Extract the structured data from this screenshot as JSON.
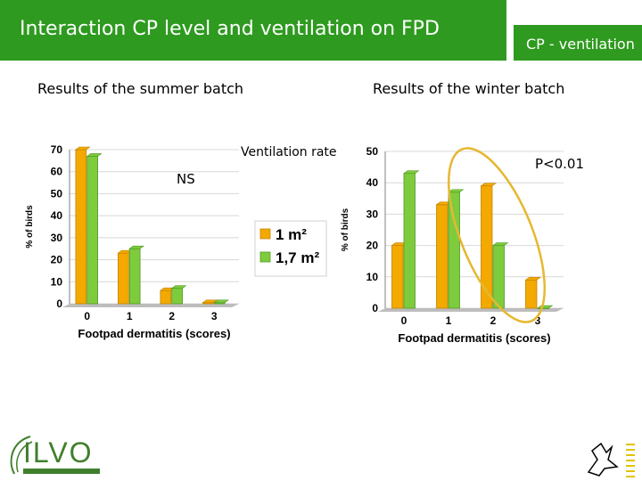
{
  "header": {
    "title": "Interaction CP level and ventilation on FPD",
    "tag": "CP - ventilation"
  },
  "sections": {
    "summer": "Results of the summer batch",
    "winter": "Results of the winter batch"
  },
  "annotations": {
    "ns": "NS",
    "ventilation_rate": "Ventilation rate",
    "p_value": "P<0.01"
  },
  "logo": {
    "text": "ILVO"
  },
  "colors": {
    "title_bg": "#2e9a1f",
    "series_1": "#f4a900",
    "series_2": "#7ecb3e",
    "ellipse": "#e6b830"
  },
  "chart_data": [
    {
      "type": "bar",
      "title": "",
      "xlabel": "Footpad dermatitis (scores)",
      "ylabel": "% of birds",
      "categories": [
        "0",
        "1",
        "2",
        "3"
      ],
      "ylim": [
        0,
        70
      ],
      "yticks": [
        0,
        10,
        20,
        30,
        40,
        50,
        60,
        70
      ],
      "grid": true,
      "legend": "right",
      "series": [
        {
          "name": "1 m²",
          "values": [
            70,
            23,
            6,
            0.5
          ]
        },
        {
          "name": "1,7 m²",
          "values": [
            67,
            25,
            7,
            0.5
          ]
        }
      ]
    },
    {
      "type": "bar",
      "title": "",
      "xlabel": "Footpad dermatitis (scores)",
      "ylabel": "% of birds",
      "categories": [
        "0",
        "1",
        "2",
        "3"
      ],
      "ylim": [
        0,
        50
      ],
      "yticks": [
        0,
        10,
        20,
        30,
        40,
        50
      ],
      "grid": true,
      "series": [
        {
          "name": "1 m²",
          "values": [
            20,
            33,
            39,
            9
          ]
        },
        {
          "name": "1,7 m²",
          "values": [
            43,
            37,
            20,
            0
          ]
        }
      ]
    }
  ]
}
